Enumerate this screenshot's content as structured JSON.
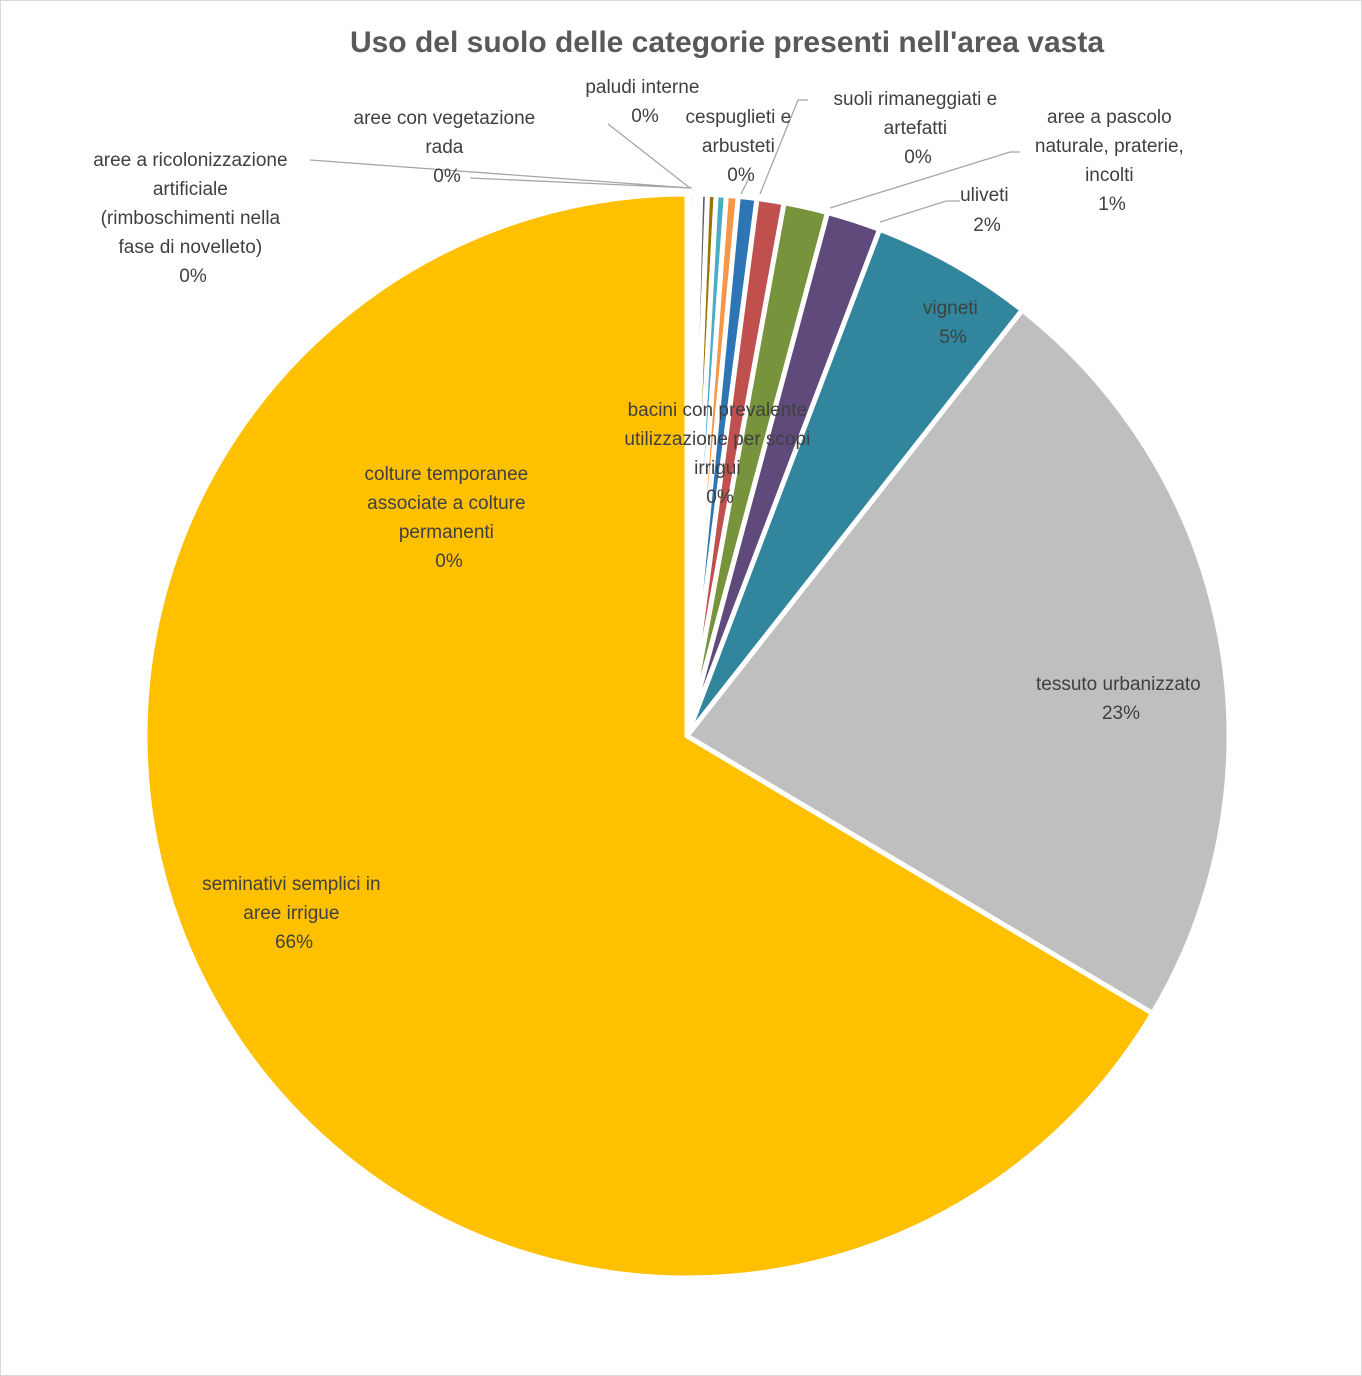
{
  "chart_data": {
    "type": "pie",
    "title": "Uso del suolo delle categorie presenti nell'area vasta",
    "series": [
      {
        "name": "colture temporanee associate a colture permanenti",
        "value": 0.1,
        "percent_label": "0%",
        "color": "#ffc000"
      },
      {
        "name": "aree a ricolonizzazione artificiale (rimboschimenti nella fase di novelleto)",
        "value": 0.15,
        "percent_label": "0%",
        "color": "#264478"
      },
      {
        "name": "aree con vegetazione rada",
        "value": 0.15,
        "percent_label": "0%",
        "color": "#9e480e"
      },
      {
        "name": "paludi interne",
        "value": 0.2,
        "percent_label": "0%",
        "color": "#636363"
      },
      {
        "name": "cespuglieti e arbusteti",
        "value": 0.25,
        "percent_label": "0%",
        "color": "#997300"
      },
      {
        "name": "bacini con prevalente utilizzazione per scopi irrigui",
        "value": 0.3,
        "percent_label": "0%",
        "color": "#4bacc6"
      },
      {
        "name": "suoli rimaneggiati e artefatti",
        "value": 0.35,
        "percent_label": "0%",
        "color": "#f79646"
      },
      {
        "name": "",
        "value": 0.55,
        "percent_label": "",
        "color": "#2e75b6"
      },
      {
        "name": "",
        "value": 0.8,
        "percent_label": "",
        "color": "#c0504d"
      },
      {
        "name": "aree a pascolo naturale, praterie, incolti",
        "value": 1.3,
        "percent_label": "1%",
        "color": "#77933c"
      },
      {
        "name": "uliveti",
        "value": 1.6,
        "percent_label": "2%",
        "color": "#604a7b"
      },
      {
        "name": "vigneti",
        "value": 4.8,
        "percent_label": "5%",
        "color": "#31859c"
      },
      {
        "name": "tessuto urbanizzato",
        "value": 22.8,
        "percent_label": "23%",
        "color": "#bfbfbf"
      },
      {
        "name": "seminativi semplici in aree irrigue",
        "value": 66.05,
        "percent_label": "66%",
        "color": "#ffc000"
      }
    ],
    "labels": {
      "title": "Uso del suolo delle categorie presenti nell'area vasta",
      "colture": [
        "colture temporanee",
        "associate a colture",
        "permanenti",
        "0%"
      ],
      "ricolonizzazione": [
        "aree a ricolonizzazione",
        "artificiale",
        "(rimboschimenti nella",
        "fase di novelleto)",
        "0%"
      ],
      "vegetazione": [
        "aree con vegetazione",
        "rada",
        "0%"
      ],
      "paludi": [
        "paludi interne",
        "0%"
      ],
      "cespuglieti": [
        "cespuglieti e",
        "arbusteti",
        "0%"
      ],
      "bacini": [
        "bacini con prevalente",
        "utilizzazione per scopi",
        "irrigui",
        "0%"
      ],
      "suoli": [
        "suoli rimaneggiati e",
        "artefatti",
        "0%"
      ],
      "pascolo": [
        "aree a pascolo",
        "naturale, praterie,",
        "incolti",
        "1%"
      ],
      "uliveti": [
        "uliveti",
        "2%"
      ],
      "vigneti": [
        "vigneti",
        "5%"
      ],
      "tessuto": [
        "tessuto urbanizzato",
        "23%"
      ],
      "seminativi": [
        "seminativi semplici in",
        "aree irrigue",
        "66%"
      ]
    },
    "legend": "none",
    "start_angle_deg": 0,
    "direction": "clockwise"
  }
}
